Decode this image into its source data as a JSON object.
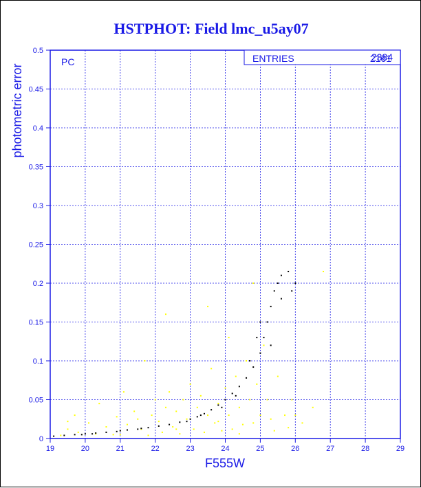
{
  "chart_data": {
    "type": "scatter",
    "title": "HSTPHOT: Field lmc_u5ay07",
    "xlabel": "F555W",
    "ylabel": "photometric error",
    "xlim": [
      19,
      29
    ],
    "ylim": [
      0,
      0.5
    ],
    "x_ticks": [
      "19",
      "20",
      "21",
      "22",
      "23",
      "24",
      "25",
      "26",
      "27",
      "28",
      "29"
    ],
    "y_ticks": [
      "0",
      "0.05",
      "0.1",
      "0.15",
      "0.2",
      "0.25",
      "0.3",
      "0.35",
      "0.4",
      "0.45",
      "0.5"
    ],
    "grid": true,
    "panel_label": "PC",
    "stats_box": {
      "label": "ENTRIES",
      "value_primary": "2161",
      "value_secondary": "2384"
    },
    "series": [
      {
        "color": "#ffff00",
        "points": [
          [
            19.3,
            0.004
          ],
          [
            19.5,
            0.012
          ],
          [
            19.8,
            0.008
          ],
          [
            20.1,
            0.02
          ],
          [
            20.3,
            0.006
          ],
          [
            20.6,
            0.015
          ],
          [
            20.9,
            0.028
          ],
          [
            21.0,
            0.005
          ],
          [
            21.2,
            0.018
          ],
          [
            21.4,
            0.035
          ],
          [
            21.6,
            0.012
          ],
          [
            21.8,
            0.004
          ],
          [
            21.9,
            0.03
          ],
          [
            22.0,
            0.05
          ],
          [
            22.1,
            0.022
          ],
          [
            22.2,
            0.008
          ],
          [
            22.3,
            0.04
          ],
          [
            22.4,
            0.06
          ],
          [
            22.5,
            0.015
          ],
          [
            22.6,
            0.035
          ],
          [
            22.7,
            0.006
          ],
          [
            22.8,
            0.05
          ],
          [
            22.9,
            0.025
          ],
          [
            23.0,
            0.07
          ],
          [
            23.1,
            0.012
          ],
          [
            23.2,
            0.04
          ],
          [
            23.3,
            0.055
          ],
          [
            23.4,
            0.008
          ],
          [
            23.5,
            0.03
          ],
          [
            23.6,
            0.09
          ],
          [
            23.7,
            0.02
          ],
          [
            23.8,
            0.045
          ],
          [
            23.9,
            0.01
          ],
          [
            24.0,
            0.065
          ],
          [
            24.1,
            0.03
          ],
          [
            24.2,
            0.012
          ],
          [
            24.3,
            0.08
          ],
          [
            24.4,
            0.04
          ],
          [
            24.5,
            0.018
          ],
          [
            24.6,
            0.1
          ],
          [
            24.7,
            0.05
          ],
          [
            24.8,
            0.02
          ],
          [
            24.9,
            0.07
          ],
          [
            25.0,
            0.03
          ],
          [
            25.1,
            0.12
          ],
          [
            25.2,
            0.05
          ],
          [
            25.3,
            0.025
          ],
          [
            25.5,
            0.08
          ],
          [
            25.7,
            0.03
          ],
          [
            25.9,
            0.05
          ],
          [
            26.2,
            0.02
          ],
          [
            26.5,
            0.04
          ],
          [
            19.7,
            0.03
          ],
          [
            20.4,
            0.045
          ],
          [
            21.1,
            0.06
          ],
          [
            21.7,
            0.1
          ],
          [
            22.3,
            0.16
          ],
          [
            23.5,
            0.17
          ],
          [
            24.1,
            0.13
          ],
          [
            24.8,
            0.2
          ],
          [
            26.8,
            0.215
          ],
          [
            19.5,
            0.022
          ],
          [
            20.8,
            0.005
          ],
          [
            21.5,
            0.025
          ],
          [
            22.6,
            0.012
          ],
          [
            23.8,
            0.022
          ],
          [
            24.4,
            0.006
          ],
          [
            25.4,
            0.01
          ],
          [
            25.8,
            0.014
          ],
          [
            26.0,
            0.03
          ]
        ]
      },
      {
        "color": "#000000",
        "points": [
          [
            19.1,
            0.003
          ],
          [
            19.4,
            0.004
          ],
          [
            19.7,
            0.005
          ],
          [
            20.0,
            0.006
          ],
          [
            20.3,
            0.007
          ],
          [
            20.6,
            0.008
          ],
          [
            20.9,
            0.009
          ],
          [
            21.2,
            0.011
          ],
          [
            21.5,
            0.012
          ],
          [
            21.8,
            0.014
          ],
          [
            22.1,
            0.016
          ],
          [
            22.4,
            0.018
          ],
          [
            22.7,
            0.021
          ],
          [
            23.0,
            0.025
          ],
          [
            23.2,
            0.028
          ],
          [
            23.4,
            0.032
          ],
          [
            23.6,
            0.037
          ],
          [
            23.8,
            0.043
          ],
          [
            24.0,
            0.05
          ],
          [
            24.2,
            0.058
          ],
          [
            24.4,
            0.067
          ],
          [
            24.6,
            0.078
          ],
          [
            24.8,
            0.092
          ],
          [
            25.0,
            0.11
          ],
          [
            25.1,
            0.13
          ],
          [
            25.2,
            0.15
          ],
          [
            25.3,
            0.17
          ],
          [
            25.4,
            0.19
          ],
          [
            25.5,
            0.2
          ],
          [
            25.6,
            0.21
          ],
          [
            25.8,
            0.215
          ],
          [
            26.0,
            0.2
          ],
          [
            25.0,
            0.15
          ],
          [
            25.3,
            0.12
          ],
          [
            25.6,
            0.18
          ],
          [
            25.9,
            0.19
          ],
          [
            24.7,
            0.1
          ],
          [
            24.9,
            0.13
          ],
          [
            23.9,
            0.04
          ],
          [
            24.3,
            0.055
          ],
          [
            22.9,
            0.022
          ],
          [
            23.3,
            0.03
          ],
          [
            21.0,
            0.01
          ],
          [
            21.6,
            0.013
          ],
          [
            20.2,
            0.006
          ],
          [
            19.9,
            0.005
          ]
        ]
      }
    ]
  }
}
